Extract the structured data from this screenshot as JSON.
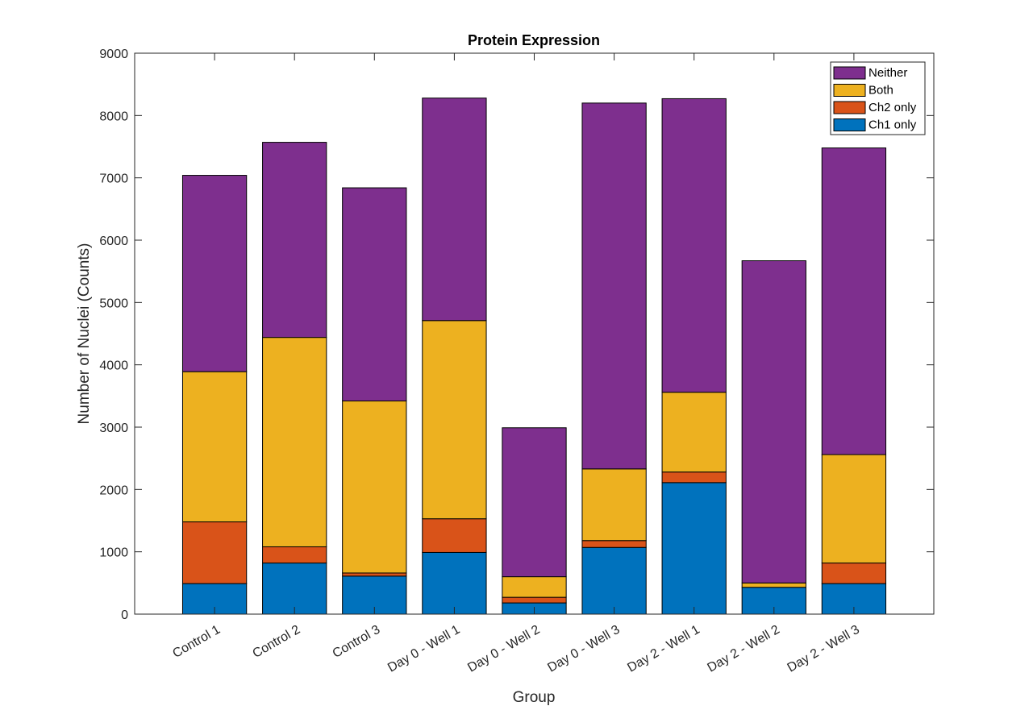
{
  "chart_data": {
    "type": "bar",
    "stacked": true,
    "title": "Protein Expression",
    "xlabel": "Group",
    "ylabel": "Number of Nuclei (Counts)",
    "ylim": [
      0,
      9000
    ],
    "yticks": [
      0,
      1000,
      2000,
      3000,
      4000,
      5000,
      6000,
      7000,
      8000,
      9000
    ],
    "grid": false,
    "legend_position": "top-right",
    "categories": [
      "Control 1",
      "Control 2",
      "Control 3",
      "Day 0 - Well 1",
      "Day 0 - Well 2",
      "Day 0 - Well 3",
      "Day 2 - Well 1",
      "Day 2 - Well 2",
      "Day 2 - Well 3"
    ],
    "series": [
      {
        "name": "Ch1 only",
        "color": "#0072BD",
        "values": [
          490,
          820,
          610,
          990,
          180,
          1070,
          2110,
          430,
          490
        ]
      },
      {
        "name": "Ch2 only",
        "color": "#D95319",
        "values": [
          990,
          260,
          50,
          540,
          90,
          110,
          170,
          0,
          330
        ]
      },
      {
        "name": "Both",
        "color": "#EDB120",
        "values": [
          2410,
          3360,
          2760,
          3180,
          330,
          1150,
          1280,
          70,
          1740
        ]
      },
      {
        "name": "Neither",
        "color": "#7E2F8E",
        "values": [
          3150,
          3130,
          3420,
          3570,
          2390,
          5870,
          4710,
          5170,
          4920
        ]
      }
    ],
    "legend_order": [
      "Neither",
      "Both",
      "Ch2 only",
      "Ch1 only"
    ]
  }
}
